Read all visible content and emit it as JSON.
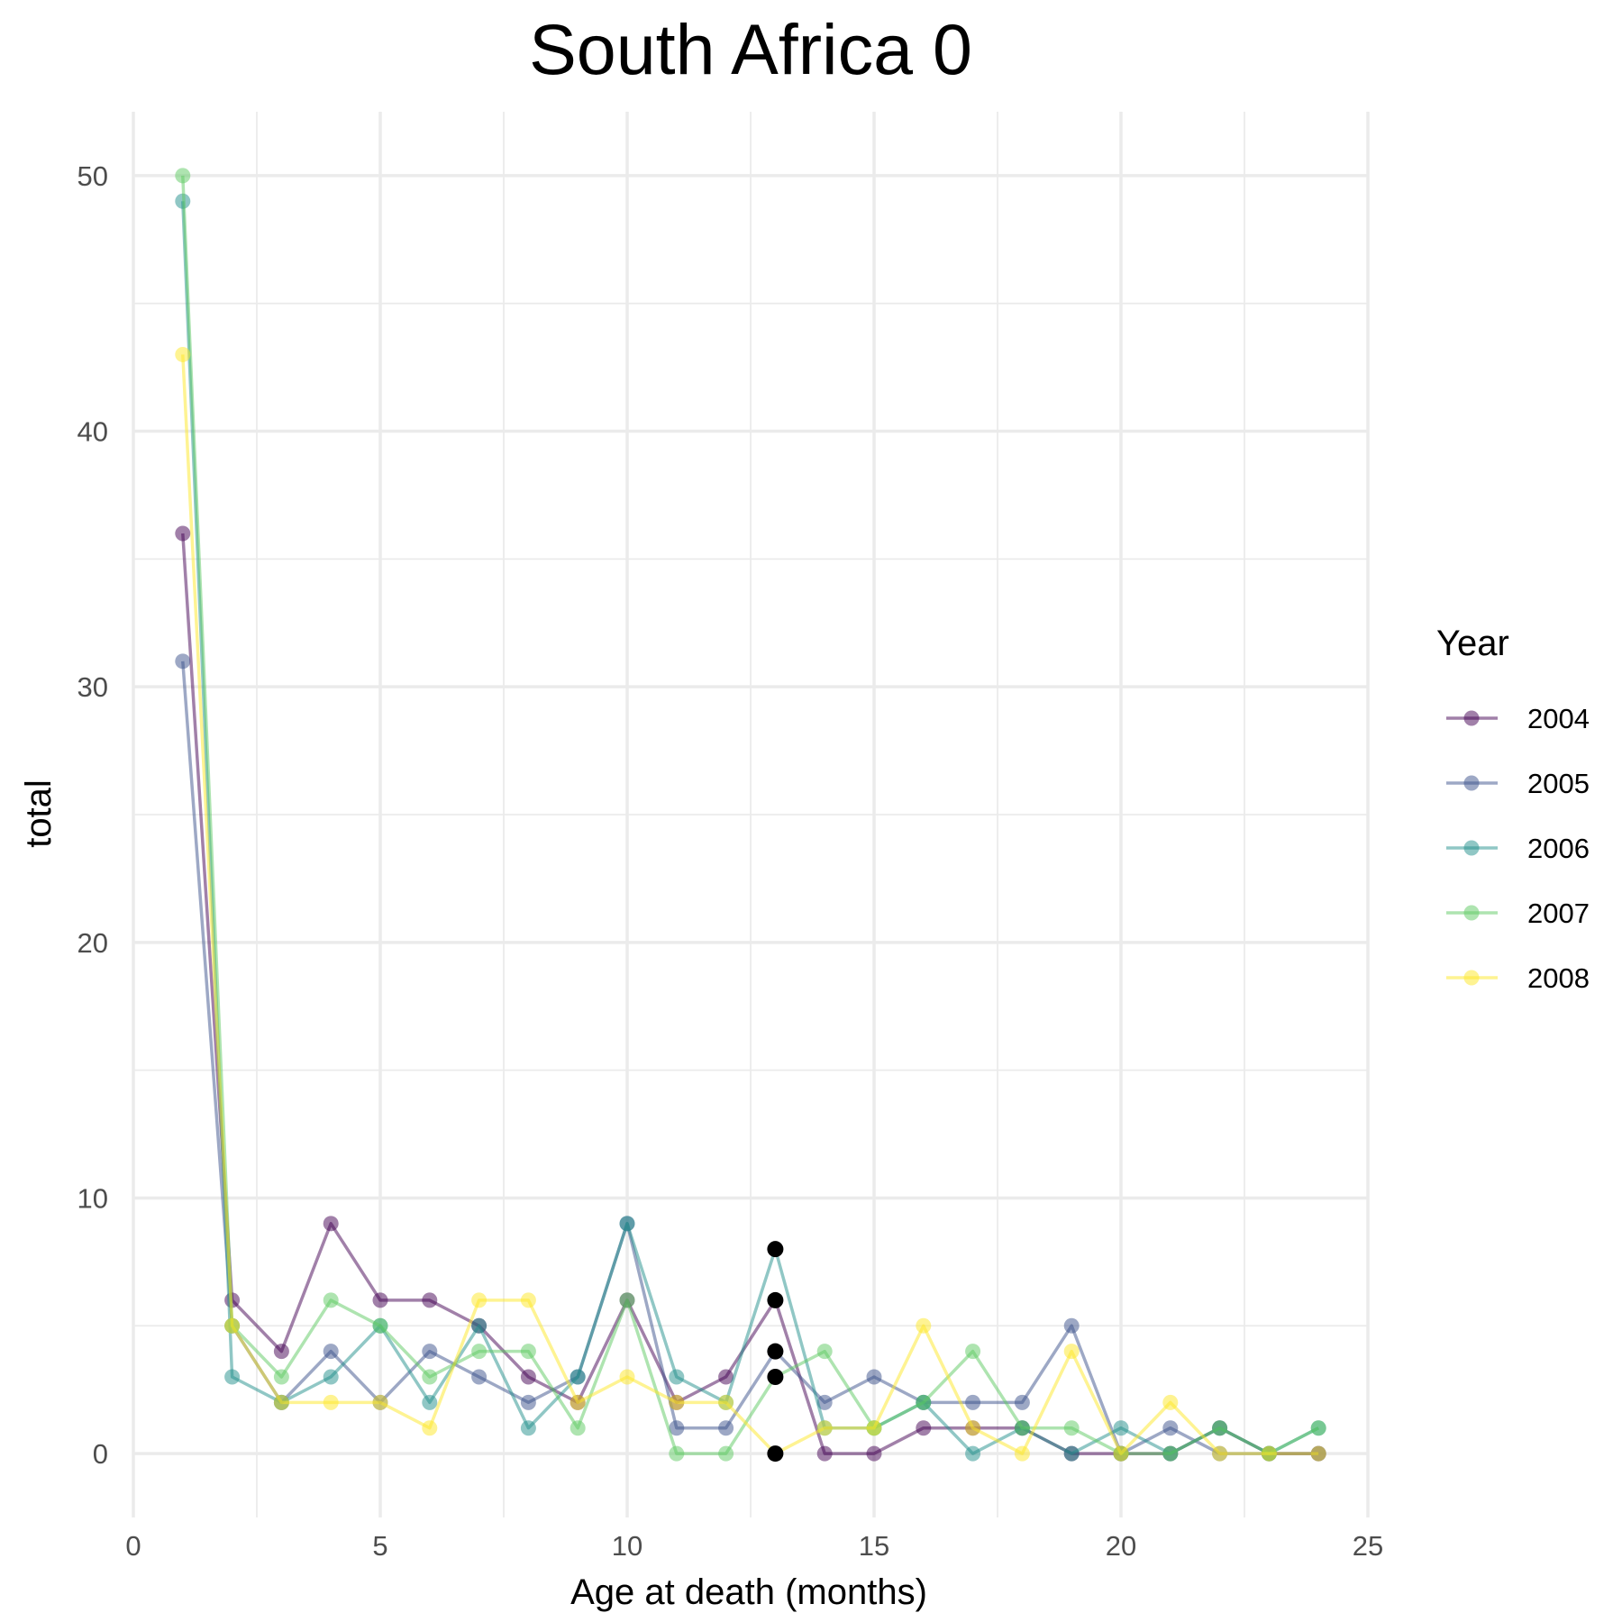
{
  "chart_data": {
    "type": "line",
    "title": "South Africa 0",
    "xlabel": "Age at death (months)",
    "ylabel": "total",
    "xlim": [
      0,
      25
    ],
    "ylim": [
      -2.5,
      52.5
    ],
    "x_ticks": [
      0,
      5,
      10,
      15,
      20,
      25
    ],
    "y_ticks": [
      0,
      10,
      20,
      30,
      40,
      50
    ],
    "grid": true,
    "legend": {
      "title": "Year",
      "position": "right"
    },
    "x": [
      1,
      2,
      3,
      4,
      5,
      6,
      7,
      8,
      9,
      10,
      11,
      12,
      13,
      14,
      15,
      16,
      17,
      18,
      19,
      20,
      21,
      22,
      23,
      24
    ],
    "series": [
      {
        "name": "2004",
        "color": "#440154",
        "values": [
          36,
          6,
          4,
          9,
          6,
          6,
          5,
          3,
          2,
          6,
          2,
          3,
          6,
          0,
          0,
          1,
          1,
          1,
          0,
          0,
          0,
          1,
          0,
          0
        ]
      },
      {
        "name": "2005",
        "color": "#3b528b",
        "values": [
          31,
          5,
          2,
          4,
          2,
          4,
          3,
          2,
          3,
          9,
          1,
          1,
          4,
          2,
          3,
          2,
          2,
          2,
          5,
          0,
          1,
          0,
          0,
          0
        ]
      },
      {
        "name": "2006",
        "color": "#21908c",
        "values": [
          49,
          3,
          2,
          3,
          5,
          2,
          5,
          1,
          3,
          9,
          3,
          2,
          8,
          1,
          1,
          2,
          0,
          1,
          0,
          1,
          0,
          1,
          0,
          1
        ]
      },
      {
        "name": "2007",
        "color": "#5ec962",
        "values": [
          50,
          5,
          3,
          6,
          5,
          3,
          4,
          4,
          1,
          6,
          0,
          0,
          3,
          4,
          1,
          2,
          4,
          1,
          1,
          0,
          0,
          1,
          0,
          1
        ]
      },
      {
        "name": "2008",
        "color": "#fde725",
        "values": [
          43,
          5,
          2,
          2,
          2,
          1,
          6,
          6,
          2,
          3,
          2,
          2,
          0,
          1,
          1,
          5,
          1,
          0,
          4,
          0,
          2,
          0,
          0,
          0
        ]
      }
    ],
    "highlight_points": {
      "color": "#000000",
      "x": [
        13,
        13,
        13,
        13,
        13
      ],
      "values": [
        6,
        4,
        8,
        3,
        0
      ]
    }
  }
}
